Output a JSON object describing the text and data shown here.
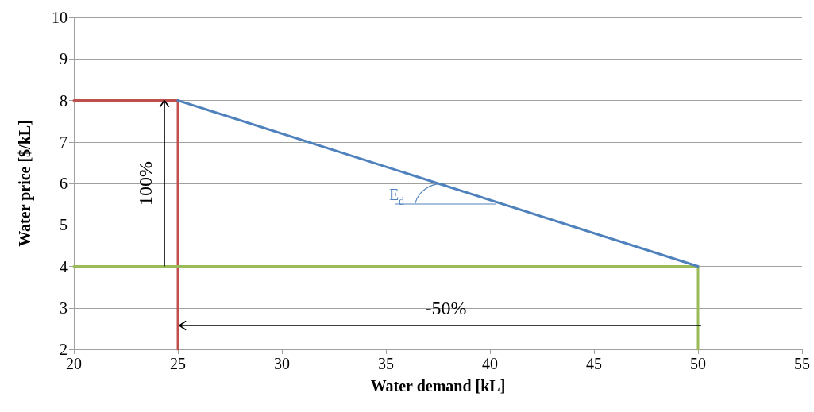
{
  "chart_data": {
    "type": "line",
    "xlabel": "Water demand [kL]",
    "ylabel": "Water price [$/kL]",
    "xlim": [
      20,
      55
    ],
    "xticks": [
      20,
      25,
      30,
      35,
      40,
      45,
      50,
      55
    ],
    "ylim": [
      2,
      10
    ],
    "yticks": [
      2,
      3,
      4,
      5,
      6,
      7,
      8,
      9,
      10
    ],
    "grid": "y",
    "marker": "none",
    "line_style": "solid",
    "series": [
      {
        "color": "#c0504d",
        "x": [
          20,
          25,
          25
        ],
        "values": [
          8,
          8,
          2
        ]
      },
      {
        "color": "#9bbb59",
        "x": [
          20,
          50,
          50
        ],
        "values": [
          4,
          4,
          2
        ]
      },
      {
        "color": "#4f81bd",
        "x": [
          25,
          50
        ],
        "values": [
          8,
          4
        ]
      }
    ],
    "annotations": [
      "100%",
      "-50%",
      {
        "text": "E$_{d}$",
        "x": 37.5,
        "y": 6
      }
    ]
  }
}
